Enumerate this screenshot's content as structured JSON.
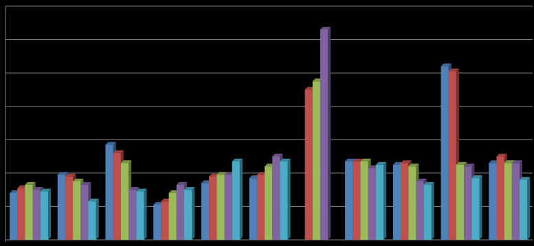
{
  "chart_data": {
    "type": "bar3d",
    "categories": [
      null,
      null,
      null,
      null,
      null,
      null,
      null,
      null,
      null,
      null,
      null
    ],
    "ylim": [
      0,
      7
    ],
    "yticks": [
      0,
      1,
      2,
      3,
      4,
      5,
      6,
      7
    ],
    "grid": true,
    "series": [
      {
        "color": "#4f81bd",
        "values": [
          1.4,
          1.95,
          2.85,
          1.05,
          1.7,
          1.85,
          null,
          2.35,
          2.25,
          5.2,
          2.3
        ]
      },
      {
        "color": "#c0504d",
        "values": [
          1.55,
          1.9,
          2.6,
          1.15,
          1.9,
          1.95,
          4.5,
          2.35,
          2.3,
          5.05,
          2.5
        ]
      },
      {
        "color": "#9bbb59",
        "values": [
          1.65,
          1.75,
          2.3,
          1.4,
          1.95,
          2.2,
          4.75,
          2.35,
          2.2,
          2.25,
          2.3
        ]
      },
      {
        "color": "#8064a2",
        "values": [
          1.5,
          1.65,
          1.5,
          1.65,
          1.95,
          2.5,
          6.3,
          2.15,
          1.75,
          2.2,
          2.3
        ]
      },
      {
        "color": "#4bacc6",
        "values": [
          1.45,
          1.15,
          1.45,
          1.5,
          2.35,
          2.35,
          null,
          2.25,
          1.65,
          1.85,
          1.8
        ]
      }
    ]
  }
}
